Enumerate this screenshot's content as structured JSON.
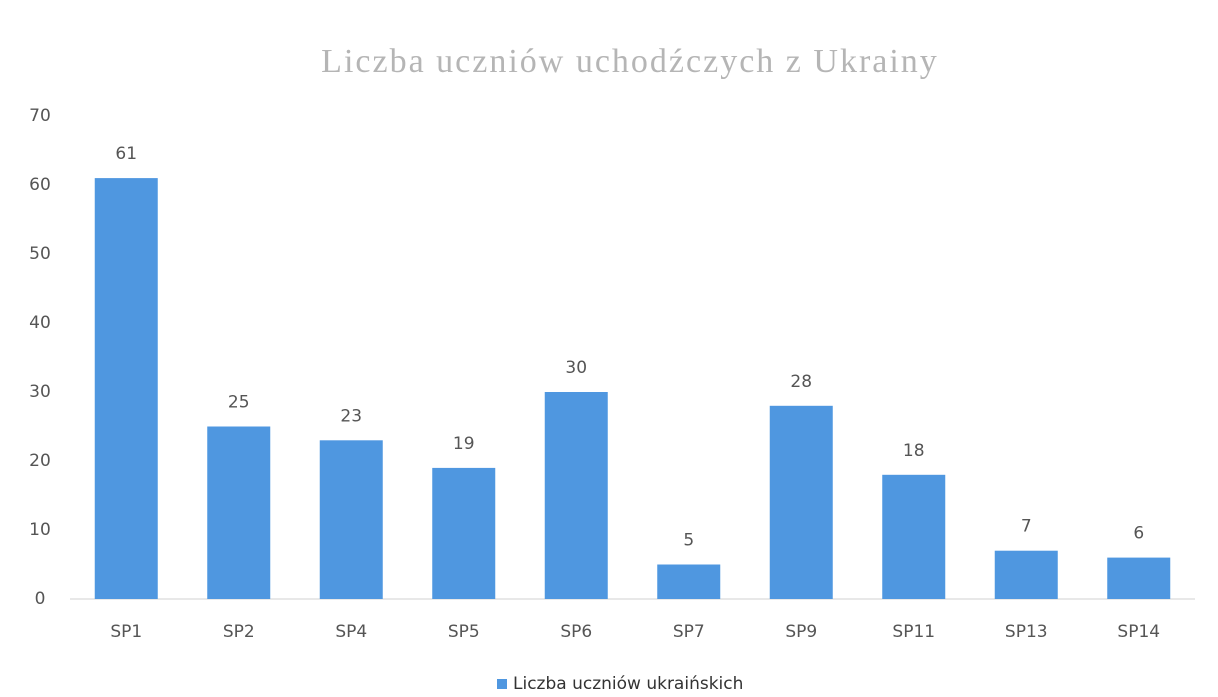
{
  "chart_data": {
    "type": "bar",
    "title": "Liczba uczniów uchodźczych z Ukrainy",
    "categories": [
      "SP1",
      "SP2",
      "SP4",
      "SP5",
      "SP6",
      "SP7",
      "SP9",
      "SP11",
      "SP13",
      "SP14"
    ],
    "series": [
      {
        "name": "Liczba uczniów ukraińskich",
        "color": "#4f97e0",
        "values": [
          61,
          25,
          23,
          19,
          30,
          5,
          28,
          18,
          7,
          6
        ]
      }
    ],
    "ylim": [
      0,
      70
    ],
    "yticks": [
      0,
      10,
      20,
      30,
      40,
      50,
      60,
      70
    ],
    "grid": false,
    "legend": "bottom"
  }
}
